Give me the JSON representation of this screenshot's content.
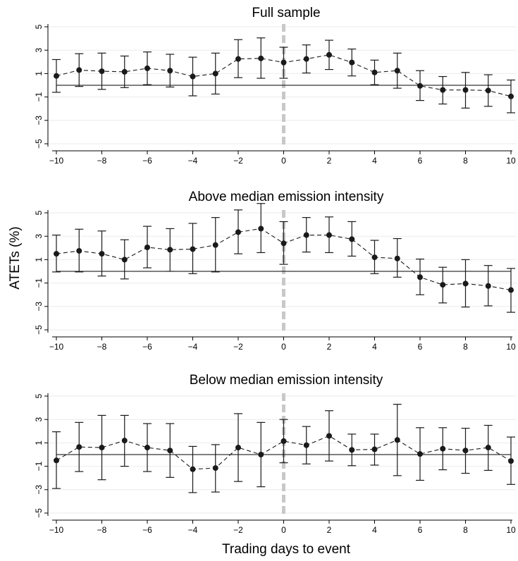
{
  "figure": {
    "ylabel": "ATETs (%)",
    "xlabel": "Trading days to event"
  },
  "chart_data": [
    {
      "type": "line",
      "title": "Full sample",
      "xlim": [
        -10,
        10
      ],
      "ylim": [
        -5,
        5
      ],
      "xticks": [
        -10,
        -8,
        -6,
        -4,
        -2,
        0,
        2,
        4,
        6,
        8,
        10
      ],
      "yticks": [
        -5,
        -3,
        -1,
        1,
        3,
        5
      ],
      "xtick_labels": [
        "−10",
        "−8",
        "−6",
        "−4",
        "−2",
        "0",
        "2",
        "4",
        "6",
        "8",
        "10"
      ],
      "ytick_labels": [
        "−5",
        "−3",
        "−1",
        "1",
        "3",
        "5"
      ],
      "event_line_x": 0,
      "reference_y": 0,
      "x": [
        -10,
        -9,
        -8,
        -7,
        -6,
        -5,
        -4,
        -3,
        -2,
        -1,
        0,
        1,
        2,
        3,
        4,
        5,
        6,
        7,
        8,
        9,
        10
      ],
      "y": [
        0.8,
        1.3,
        1.2,
        1.15,
        1.45,
        1.25,
        0.75,
        1.0,
        2.25,
        2.3,
        1.95,
        2.25,
        2.6,
        1.95,
        1.1,
        1.25,
        -0.05,
        -0.4,
        -0.4,
        -0.45,
        -0.95
      ],
      "ci_low": [
        -0.6,
        -0.1,
        -0.35,
        -0.2,
        0.05,
        -0.15,
        -0.9,
        -0.75,
        0.65,
        0.6,
        0.6,
        1.05,
        1.35,
        0.8,
        0.05,
        -0.25,
        -1.3,
        -1.6,
        -1.95,
        -1.8,
        -2.35
      ],
      "ci_high": [
        2.2,
        2.7,
        2.75,
        2.5,
        2.85,
        2.65,
        2.4,
        2.75,
        3.9,
        4.05,
        3.25,
        3.45,
        3.85,
        3.1,
        2.15,
        2.75,
        1.25,
        0.75,
        1.1,
        0.9,
        0.45
      ],
      "colors": {
        "marker": "#1a1a1a",
        "event_line": "#c8c8c8",
        "grid": "#ebebeb"
      }
    },
    {
      "type": "line",
      "title": "Above median emission intensity",
      "xlim": [
        -10,
        10
      ],
      "ylim": [
        -5,
        5
      ],
      "xticks": [
        -10,
        -8,
        -6,
        -4,
        -2,
        0,
        2,
        4,
        6,
        8,
        10
      ],
      "yticks": [
        -5,
        -3,
        -1,
        1,
        3,
        5
      ],
      "xtick_labels": [
        "−10",
        "−8",
        "−6",
        "−4",
        "−2",
        "0",
        "2",
        "4",
        "6",
        "8",
        "10"
      ],
      "ytick_labels": [
        "−5",
        "−3",
        "−1",
        "1",
        "3",
        "5"
      ],
      "event_line_x": 0,
      "reference_y": 0,
      "x": [
        -10,
        -9,
        -8,
        -7,
        -6,
        -5,
        -4,
        -3,
        -2,
        -1,
        0,
        1,
        2,
        3,
        4,
        5,
        6,
        7,
        8,
        9,
        10
      ],
      "y": [
        1.5,
        1.75,
        1.5,
        1.0,
        2.05,
        1.85,
        1.9,
        2.25,
        3.35,
        3.65,
        2.4,
        3.1,
        3.1,
        2.75,
        1.2,
        1.1,
        -0.5,
        -1.15,
        -1.05,
        -1.25,
        -1.6
      ],
      "ci_low": [
        -0.05,
        -0.05,
        -0.4,
        -0.65,
        0.3,
        0.0,
        -0.2,
        -0.05,
        1.5,
        1.6,
        0.6,
        1.65,
        1.6,
        1.3,
        -0.2,
        -0.5,
        -2.0,
        -2.7,
        -3.05,
        -2.95,
        -3.5
      ],
      "ci_high": [
        3.1,
        3.6,
        3.45,
        2.7,
        3.85,
        3.65,
        4.1,
        4.6,
        5.25,
        5.8,
        4.25,
        4.6,
        4.65,
        4.25,
        2.65,
        2.8,
        1.05,
        0.35,
        1.0,
        0.5,
        0.25
      ],
      "colors": {
        "marker": "#1a1a1a",
        "event_line": "#c8c8c8",
        "grid": "#ebebeb"
      }
    },
    {
      "type": "line",
      "title": "Below median emission intensity",
      "xlim": [
        -10,
        10
      ],
      "ylim": [
        -5,
        5
      ],
      "xticks": [
        -10,
        -8,
        -6,
        -4,
        -2,
        0,
        2,
        4,
        6,
        8,
        10
      ],
      "yticks": [
        -5,
        -3,
        -1,
        1,
        3,
        5
      ],
      "xtick_labels": [
        "−10",
        "−8",
        "−6",
        "−4",
        "−2",
        "0",
        "2",
        "4",
        "6",
        "8",
        "10"
      ],
      "ytick_labels": [
        "−5",
        "−3",
        "−1",
        "1",
        "3",
        "5"
      ],
      "event_line_x": 0,
      "reference_y": 0,
      "x": [
        -10,
        -9,
        -8,
        -7,
        -6,
        -5,
        -4,
        -3,
        -2,
        -1,
        0,
        1,
        2,
        3,
        4,
        5,
        6,
        7,
        8,
        9,
        10
      ],
      "y": [
        -0.5,
        0.65,
        0.6,
        1.2,
        0.6,
        0.35,
        -1.25,
        -1.15,
        0.6,
        0.0,
        1.15,
        0.8,
        1.6,
        0.4,
        0.45,
        1.25,
        0.05,
        0.5,
        0.35,
        0.6,
        -0.55
      ],
      "ci_low": [
        -2.9,
        -1.45,
        -2.15,
        -1.0,
        -1.45,
        -1.95,
        -3.25,
        -3.2,
        -2.3,
        -2.75,
        -0.7,
        -0.8,
        -0.55,
        -0.95,
        -0.9,
        -1.8,
        -2.2,
        -1.3,
        -1.6,
        -1.35,
        -2.55
      ],
      "ci_high": [
        1.95,
        2.75,
        3.35,
        3.35,
        2.65,
        2.65,
        0.7,
        0.85,
        3.5,
        2.75,
        3.0,
        2.4,
        3.75,
        1.75,
        1.75,
        4.3,
        2.3,
        2.3,
        2.25,
        2.5,
        1.5
      ],
      "colors": {
        "marker": "#1a1a1a",
        "event_line": "#c8c8c8",
        "grid": "#ebebeb"
      }
    }
  ]
}
